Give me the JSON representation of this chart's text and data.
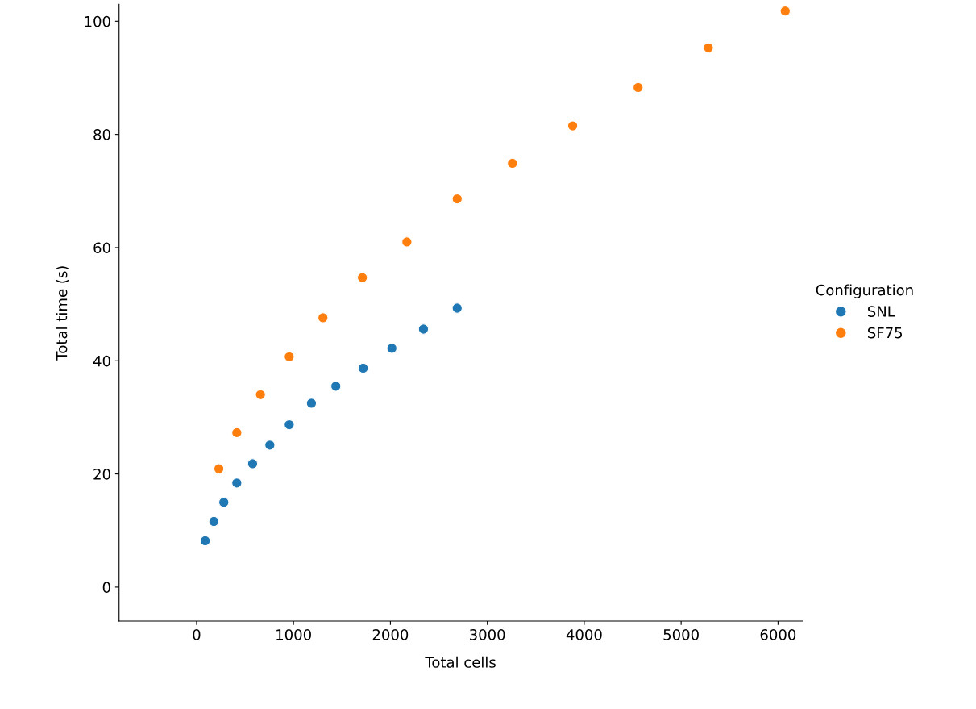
{
  "chart_data": {
    "type": "scatter",
    "xlabel": "Total cells",
    "ylabel": "Total time (s)",
    "legend_title": "Configuration",
    "legend": "right",
    "marker": "circle",
    "grid": false,
    "xlim": [
      -800,
      6250
    ],
    "xticks": [
      0,
      1000,
      2000,
      3000,
      4000,
      5000,
      6000
    ],
    "ylim": [
      -6,
      103
    ],
    "yticks": [
      0,
      20,
      40,
      60,
      80,
      100
    ],
    "series": [
      {
        "name": "SNL",
        "color": "#1f77b4",
        "x": [
          89,
          178,
          281,
          415,
          578,
          756,
          956,
          1185,
          1437,
          1719,
          2015,
          2341,
          2689
        ],
        "values": [
          8.2,
          11.6,
          15.0,
          18.4,
          21.8,
          25.1,
          28.7,
          32.5,
          35.5,
          38.7,
          42.2,
          45.6,
          49.3
        ]
      },
      {
        "name": "SF75",
        "color": "#ff7f0e",
        "x": [
          230,
          415,
          659,
          956,
          1304,
          1711,
          2170,
          2689,
          3259,
          3881,
          4556,
          5281,
          6074
        ],
        "values": [
          20.9,
          27.3,
          34.0,
          40.7,
          47.6,
          54.7,
          61.0,
          68.6,
          74.9,
          81.5,
          88.3,
          95.3,
          101.8
        ]
      }
    ]
  }
}
